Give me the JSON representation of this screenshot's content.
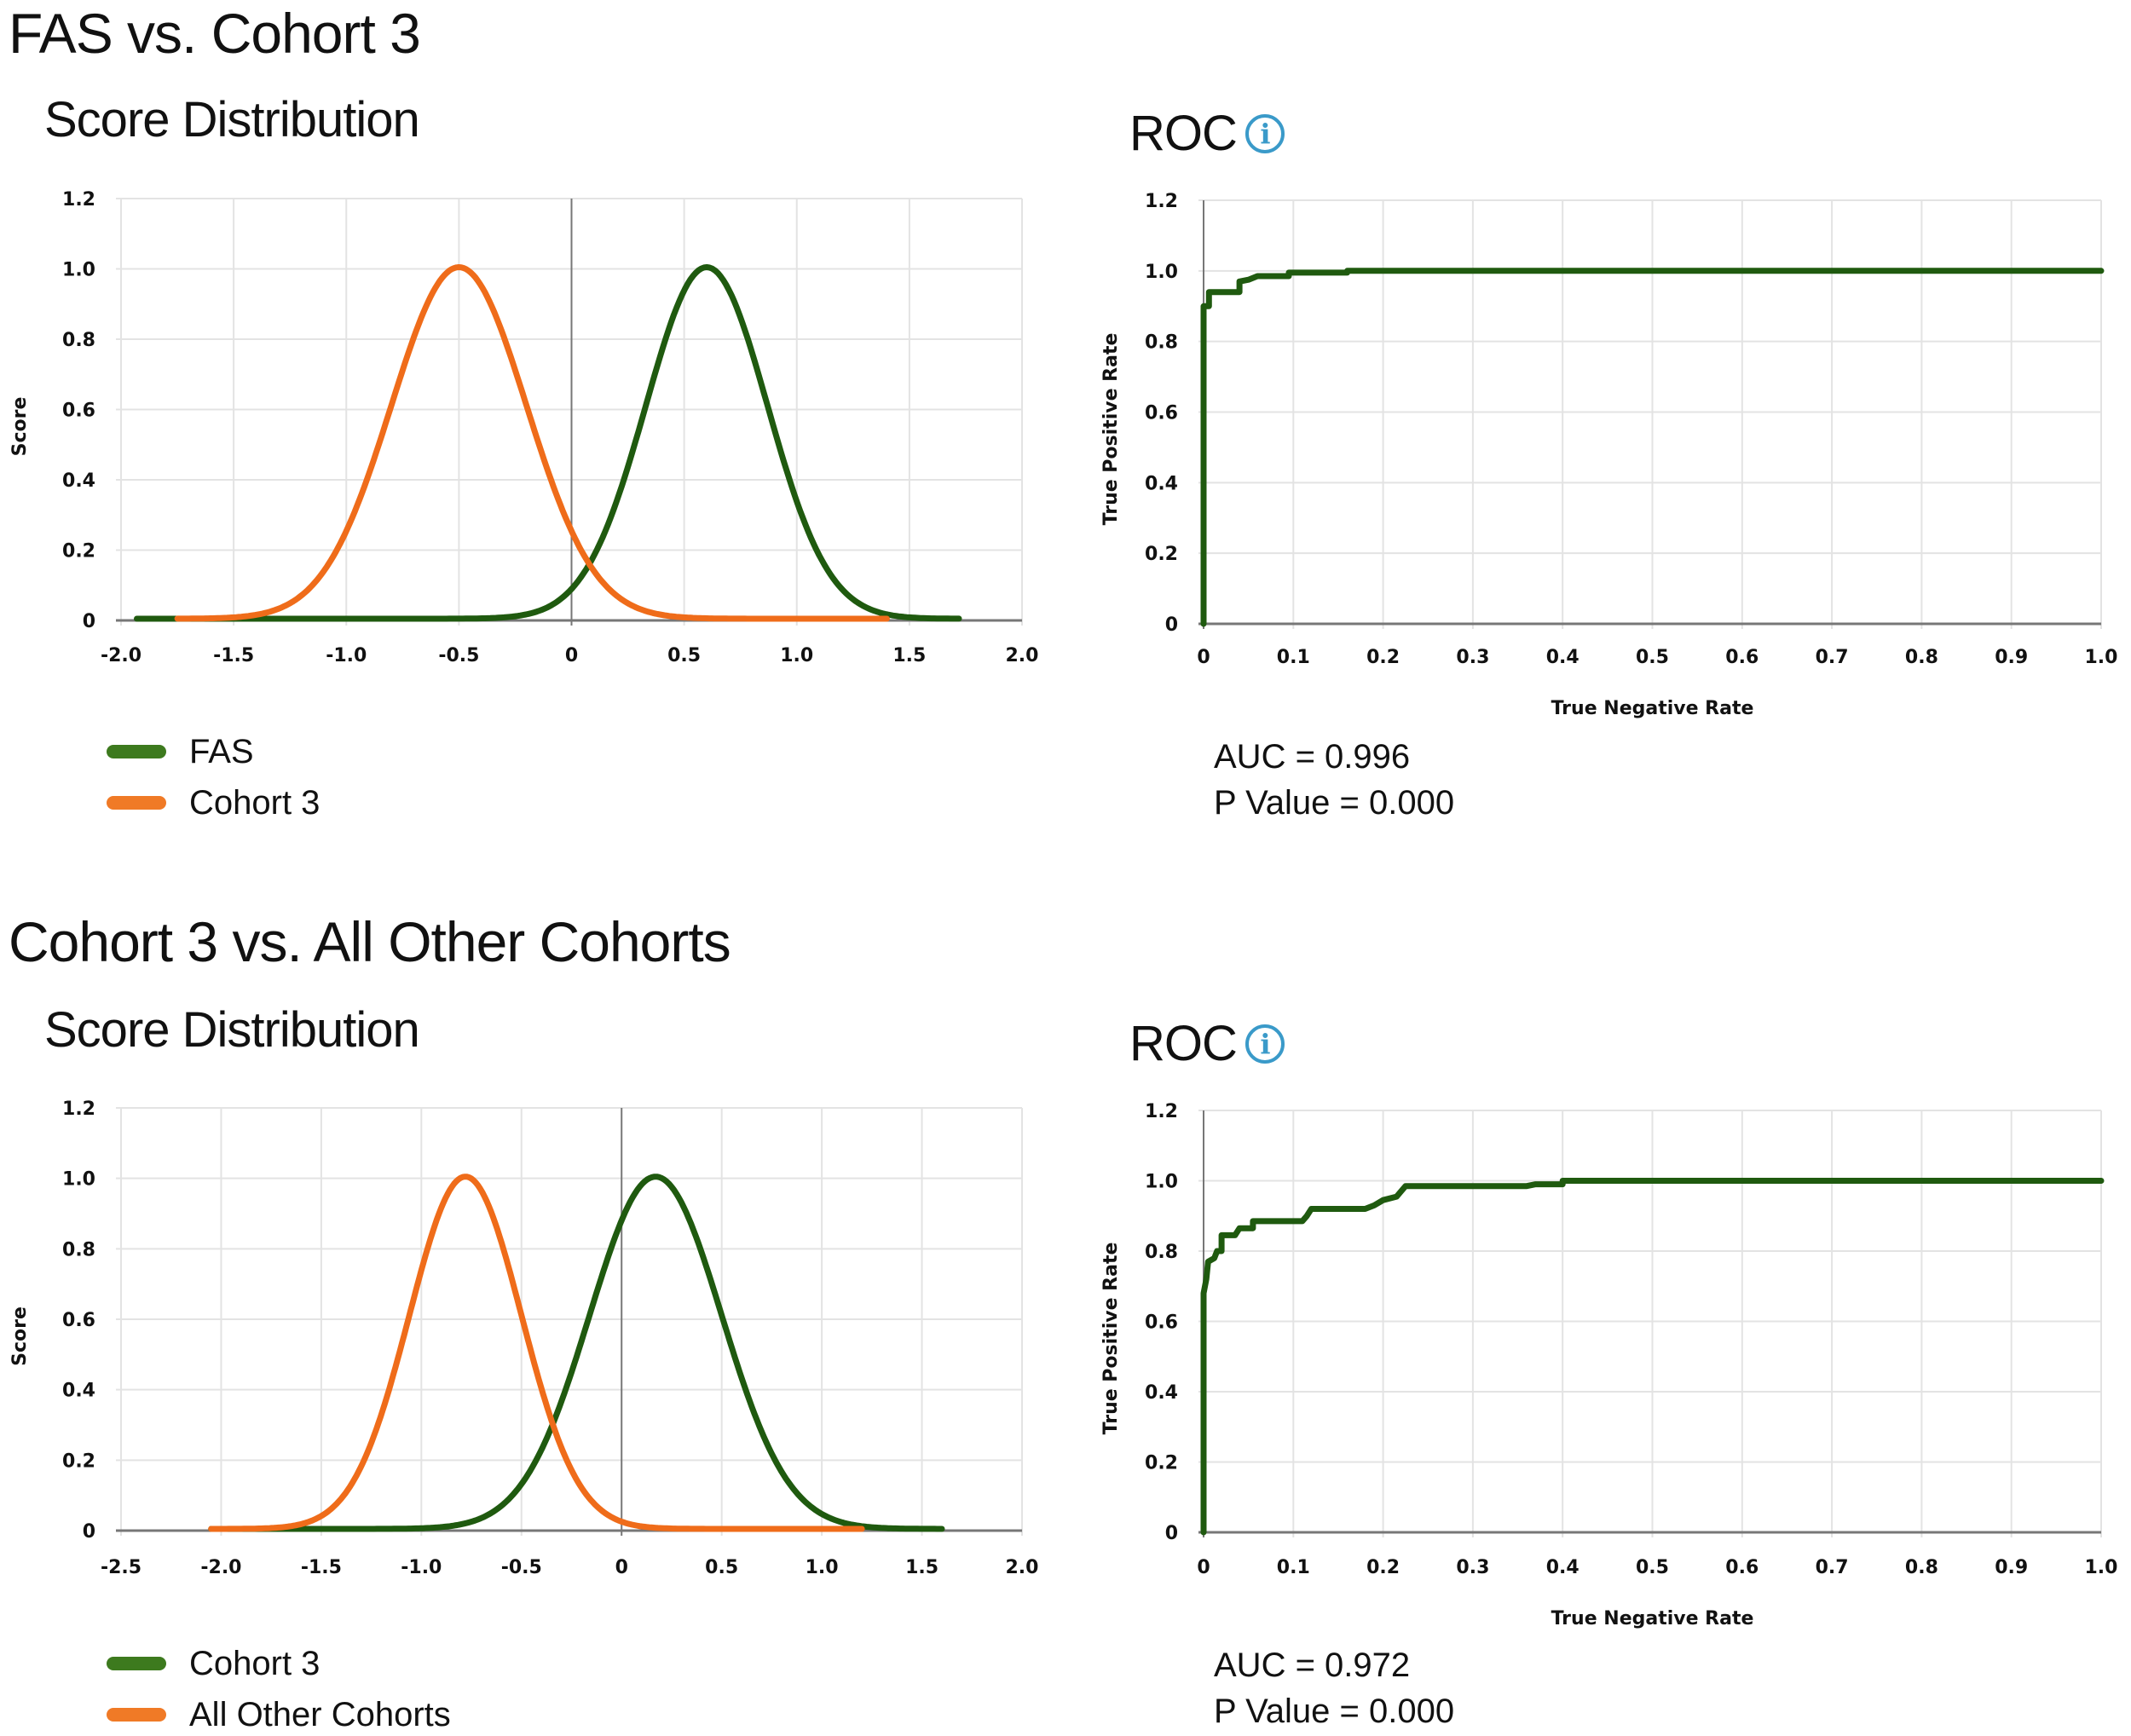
{
  "colors": {
    "green_line": "#1f5a0f",
    "orange_line": "#ef6c1a",
    "green_swatch": "#3d7a1e",
    "orange_swatch": "#f07a26",
    "grid": "#e3e3e3",
    "axis": "#777777",
    "info": "#3a9ac9"
  },
  "sections": [
    {
      "title": "FAS vs. Cohort 3",
      "score_panel_title": "Score Distribution",
      "roc_panel_title": "ROC",
      "info_icon": "i",
      "legend": [
        {
          "label": "FAS",
          "color_key": "green_swatch"
        },
        {
          "label": "Cohort 3",
          "color_key": "orange_swatch"
        }
      ],
      "stats": {
        "auc": "AUC = 0.996",
        "p_value": "P Value = 0.000"
      }
    },
    {
      "title": "Cohort 3 vs. All Other Cohorts",
      "score_panel_title": "Score Distribution",
      "roc_panel_title": "ROC",
      "info_icon": "i",
      "legend": [
        {
          "label": "Cohort 3",
          "color_key": "green_swatch"
        },
        {
          "label": "All Other Cohorts",
          "color_key": "orange_swatch"
        }
      ],
      "stats": {
        "auc": "AUC = 0.972",
        "p_value": "P Value = 0.000"
      }
    }
  ],
  "chart_data": [
    {
      "id": "dist1",
      "type": "line",
      "title": "Score Distribution",
      "xlabel": "",
      "ylabel": "Score",
      "xlim": [
        -2.0,
        2.0
      ],
      "ylim": [
        0,
        1.2
      ],
      "xticks": [
        -2.0,
        -1.5,
        -1.0,
        -0.5,
        0,
        0.5,
        1.0,
        1.5,
        2.0
      ],
      "xtick_labels": [
        "-2.0",
        "-1.5",
        "-1.0",
        "-0.5",
        "0",
        "0.5",
        "1.0",
        "1.5",
        "2.0"
      ],
      "yticks": [
        0,
        0.2,
        0.4,
        0.6,
        0.8,
        1.0,
        1.2
      ],
      "ytick_labels": [
        "0",
        "0.2",
        "0.4",
        "0.6",
        "0.8",
        "1.0",
        "1.2"
      ],
      "grid": true,
      "legend_position": "bottom-left",
      "series": [
        {
          "name": "FAS",
          "color_key": "green_line",
          "shape": "gaussian",
          "peak_x": 0.6,
          "peak_y": 1.0,
          "sigma": 0.27,
          "x_range": [
            -1.93,
            1.72
          ]
        },
        {
          "name": "Cohort 3",
          "color_key": "orange_line",
          "shape": "gaussian",
          "peak_x": -0.5,
          "peak_y": 1.0,
          "sigma": 0.3,
          "x_range": [
            -1.75,
            1.4
          ]
        }
      ]
    },
    {
      "id": "roc1",
      "type": "line",
      "title": "ROC",
      "xlabel": "True Negative Rate",
      "ylabel": "True Positive Rate",
      "xlim": [
        0,
        1.0
      ],
      "ylim": [
        0,
        1.2
      ],
      "xticks": [
        0,
        0.1,
        0.2,
        0.3,
        0.4,
        0.5,
        0.6,
        0.7,
        0.8,
        0.9,
        1.0
      ],
      "xtick_labels": [
        "0",
        "0.1",
        "0.2",
        "0.3",
        "0.4",
        "0.5",
        "0.6",
        "0.7",
        "0.8",
        "0.9",
        "1.0"
      ],
      "yticks": [
        0,
        0.2,
        0.4,
        0.6,
        0.8,
        1.0,
        1.2
      ],
      "ytick_labels": [
        "0",
        "0.2",
        "0.4",
        "0.6",
        "0.8",
        "1.0",
        "1.2"
      ],
      "grid": true,
      "auc": 0.996,
      "p_value": 0.0,
      "series": [
        {
          "name": "ROC",
          "color_key": "green_line",
          "step": true,
          "points": [
            [
              0,
              0
            ],
            [
              0,
              0.9
            ],
            [
              0.006,
              0.9
            ],
            [
              0.006,
              0.94
            ],
            [
              0.04,
              0.94
            ],
            [
              0.04,
              0.97
            ],
            [
              0.05,
              0.975
            ],
            [
              0.06,
              0.985
            ],
            [
              0.095,
              0.985
            ],
            [
              0.095,
              0.995
            ],
            [
              0.16,
              0.995
            ],
            [
              0.16,
              1.0
            ],
            [
              1.0,
              1.0
            ]
          ]
        }
      ]
    },
    {
      "id": "dist2",
      "type": "line",
      "title": "Score Distribution",
      "xlabel": "",
      "ylabel": "Score",
      "xlim": [
        -2.5,
        2.0
      ],
      "ylim": [
        0,
        1.2
      ],
      "xticks": [
        -2.5,
        -2.0,
        -1.5,
        -1.0,
        -0.5,
        0,
        0.5,
        1.0,
        1.5,
        2.0
      ],
      "xtick_labels": [
        "-2.5",
        "-2.0",
        "-1.5",
        "-1.0",
        "-0.5",
        "0",
        "0.5",
        "1.0",
        "1.5",
        "2.0"
      ],
      "yticks": [
        0,
        0.2,
        0.4,
        0.6,
        0.8,
        1.0,
        1.2
      ],
      "ytick_labels": [
        "0",
        "0.2",
        "0.4",
        "0.6",
        "0.8",
        "1.0",
        "1.2"
      ],
      "grid": true,
      "legend_position": "bottom-left",
      "series": [
        {
          "name": "Cohort 3",
          "color_key": "green_line",
          "shape": "gaussian",
          "peak_x": 0.17,
          "peak_y": 1.0,
          "sigma": 0.33,
          "x_range": [
            -2.05,
            1.6
          ]
        },
        {
          "name": "All Other Cohorts",
          "color_key": "orange_line",
          "shape": "gaussian",
          "peak_x": -0.78,
          "peak_y": 1.0,
          "sigma": 0.28,
          "x_range": [
            -2.05,
            1.2
          ]
        }
      ]
    },
    {
      "id": "roc2",
      "type": "line",
      "title": "ROC",
      "xlabel": "True Negative Rate",
      "ylabel": "True Positive Rate",
      "xlim": [
        0,
        1.0
      ],
      "ylim": [
        0,
        1.2
      ],
      "xticks": [
        0,
        0.1,
        0.2,
        0.3,
        0.4,
        0.5,
        0.6,
        0.7,
        0.8,
        0.9,
        1.0
      ],
      "xtick_labels": [
        "0",
        "0.1",
        "0.2",
        "0.3",
        "0.4",
        "0.5",
        "0.6",
        "0.7",
        "0.8",
        "0.9",
        "1.0"
      ],
      "yticks": [
        0,
        0.2,
        0.4,
        0.6,
        0.8,
        1.0,
        1.2
      ],
      "ytick_labels": [
        "0",
        "0.2",
        "0.4",
        "0.6",
        "0.8",
        "1.0",
        "1.2"
      ],
      "grid": true,
      "auc": 0.972,
      "p_value": 0.0,
      "series": [
        {
          "name": "ROC",
          "color_key": "green_line",
          "step": true,
          "points": [
            [
              0,
              0
            ],
            [
              0,
              0.68
            ],
            [
              0.003,
              0.72
            ],
            [
              0.005,
              0.77
            ],
            [
              0.012,
              0.78
            ],
            [
              0.015,
              0.8
            ],
            [
              0.02,
              0.8
            ],
            [
              0.02,
              0.845
            ],
            [
              0.035,
              0.845
            ],
            [
              0.04,
              0.865
            ],
            [
              0.055,
              0.865
            ],
            [
              0.055,
              0.885
            ],
            [
              0.11,
              0.885
            ],
            [
              0.115,
              0.9
            ],
            [
              0.12,
              0.92
            ],
            [
              0.18,
              0.92
            ],
            [
              0.19,
              0.93
            ],
            [
              0.2,
              0.945
            ],
            [
              0.215,
              0.955
            ],
            [
              0.225,
              0.985
            ],
            [
              0.36,
              0.985
            ],
            [
              0.37,
              0.99
            ],
            [
              0.4,
              0.99
            ],
            [
              0.4,
              1.0
            ],
            [
              1.0,
              1.0
            ]
          ]
        }
      ]
    }
  ]
}
